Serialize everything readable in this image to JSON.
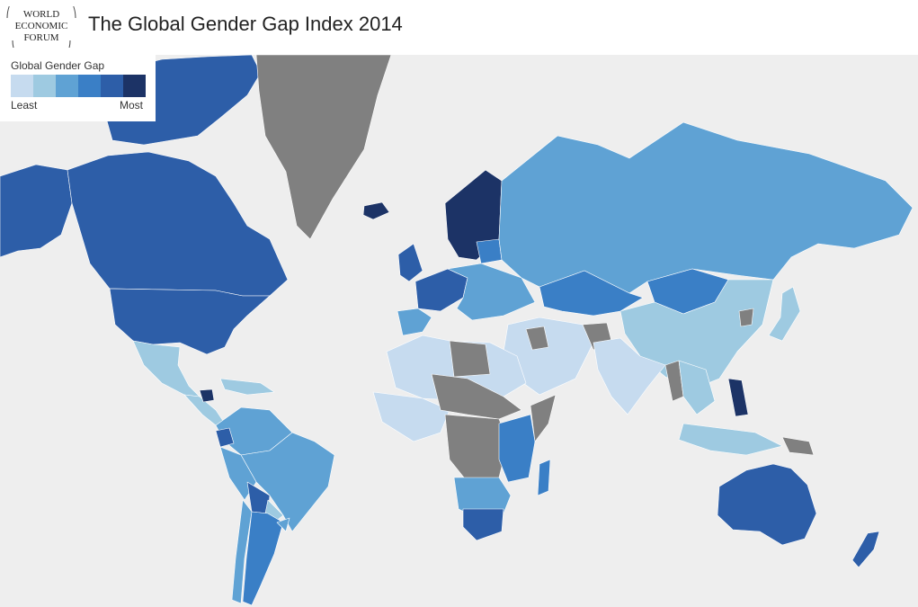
{
  "header": {
    "logo_text": [
      "WORLD",
      "ECONOMIC",
      "FORUM"
    ],
    "title": "The Global Gender Gap Index 2014"
  },
  "legend": {
    "title": "Global Gender Gap",
    "scale_colors": [
      "#c6dbef",
      "#9ecae1",
      "#5fa2d4",
      "#3a7fc6",
      "#2d5ea8",
      "#1c3366"
    ],
    "low_label": "Least",
    "high_label": "Most"
  },
  "map": {
    "ocean_color": "#eeeeee",
    "no_data_color": "#808080",
    "levels": {
      "canada": 5,
      "usa": 5,
      "alaska": 5,
      "arctic_islands": 5,
      "mexico": 2,
      "central_america": 2,
      "nicaragua": 6,
      "caribbean": 2,
      "colombia_venezuela": 3,
      "ecuador": 5,
      "peru": 3,
      "brazil": 3,
      "bolivia": 5,
      "paraguay": 2,
      "chile": 3,
      "argentina": 4,
      "uruguay": 3,
      "scandinavia": 6,
      "iceland": 6,
      "ireland_uk": 5,
      "france_germany": 5,
      "iberia": 3,
      "eastern_europe": 3,
      "baltics": 4,
      "russia": 3,
      "kazakhstan": 4,
      "mongolia": 4,
      "china": 2,
      "japan": 2,
      "south_asia": 1,
      "middle_east": 1,
      "north_africa": 1,
      "west_africa": 1,
      "east_africa": 4,
      "southern_africa": 3,
      "south_africa": 5,
      "madagascar": 4,
      "southeast_asia": 2,
      "philippines": 6,
      "indonesia": 2,
      "australia": 5,
      "new_zealand": 5
    },
    "no_data_regions": [
      "greenland",
      "central_africa",
      "sahel",
      "afghanistan",
      "iraq",
      "myanmar",
      "north_korea",
      "papua_new_guinea",
      "somalia",
      "libya"
    ]
  }
}
